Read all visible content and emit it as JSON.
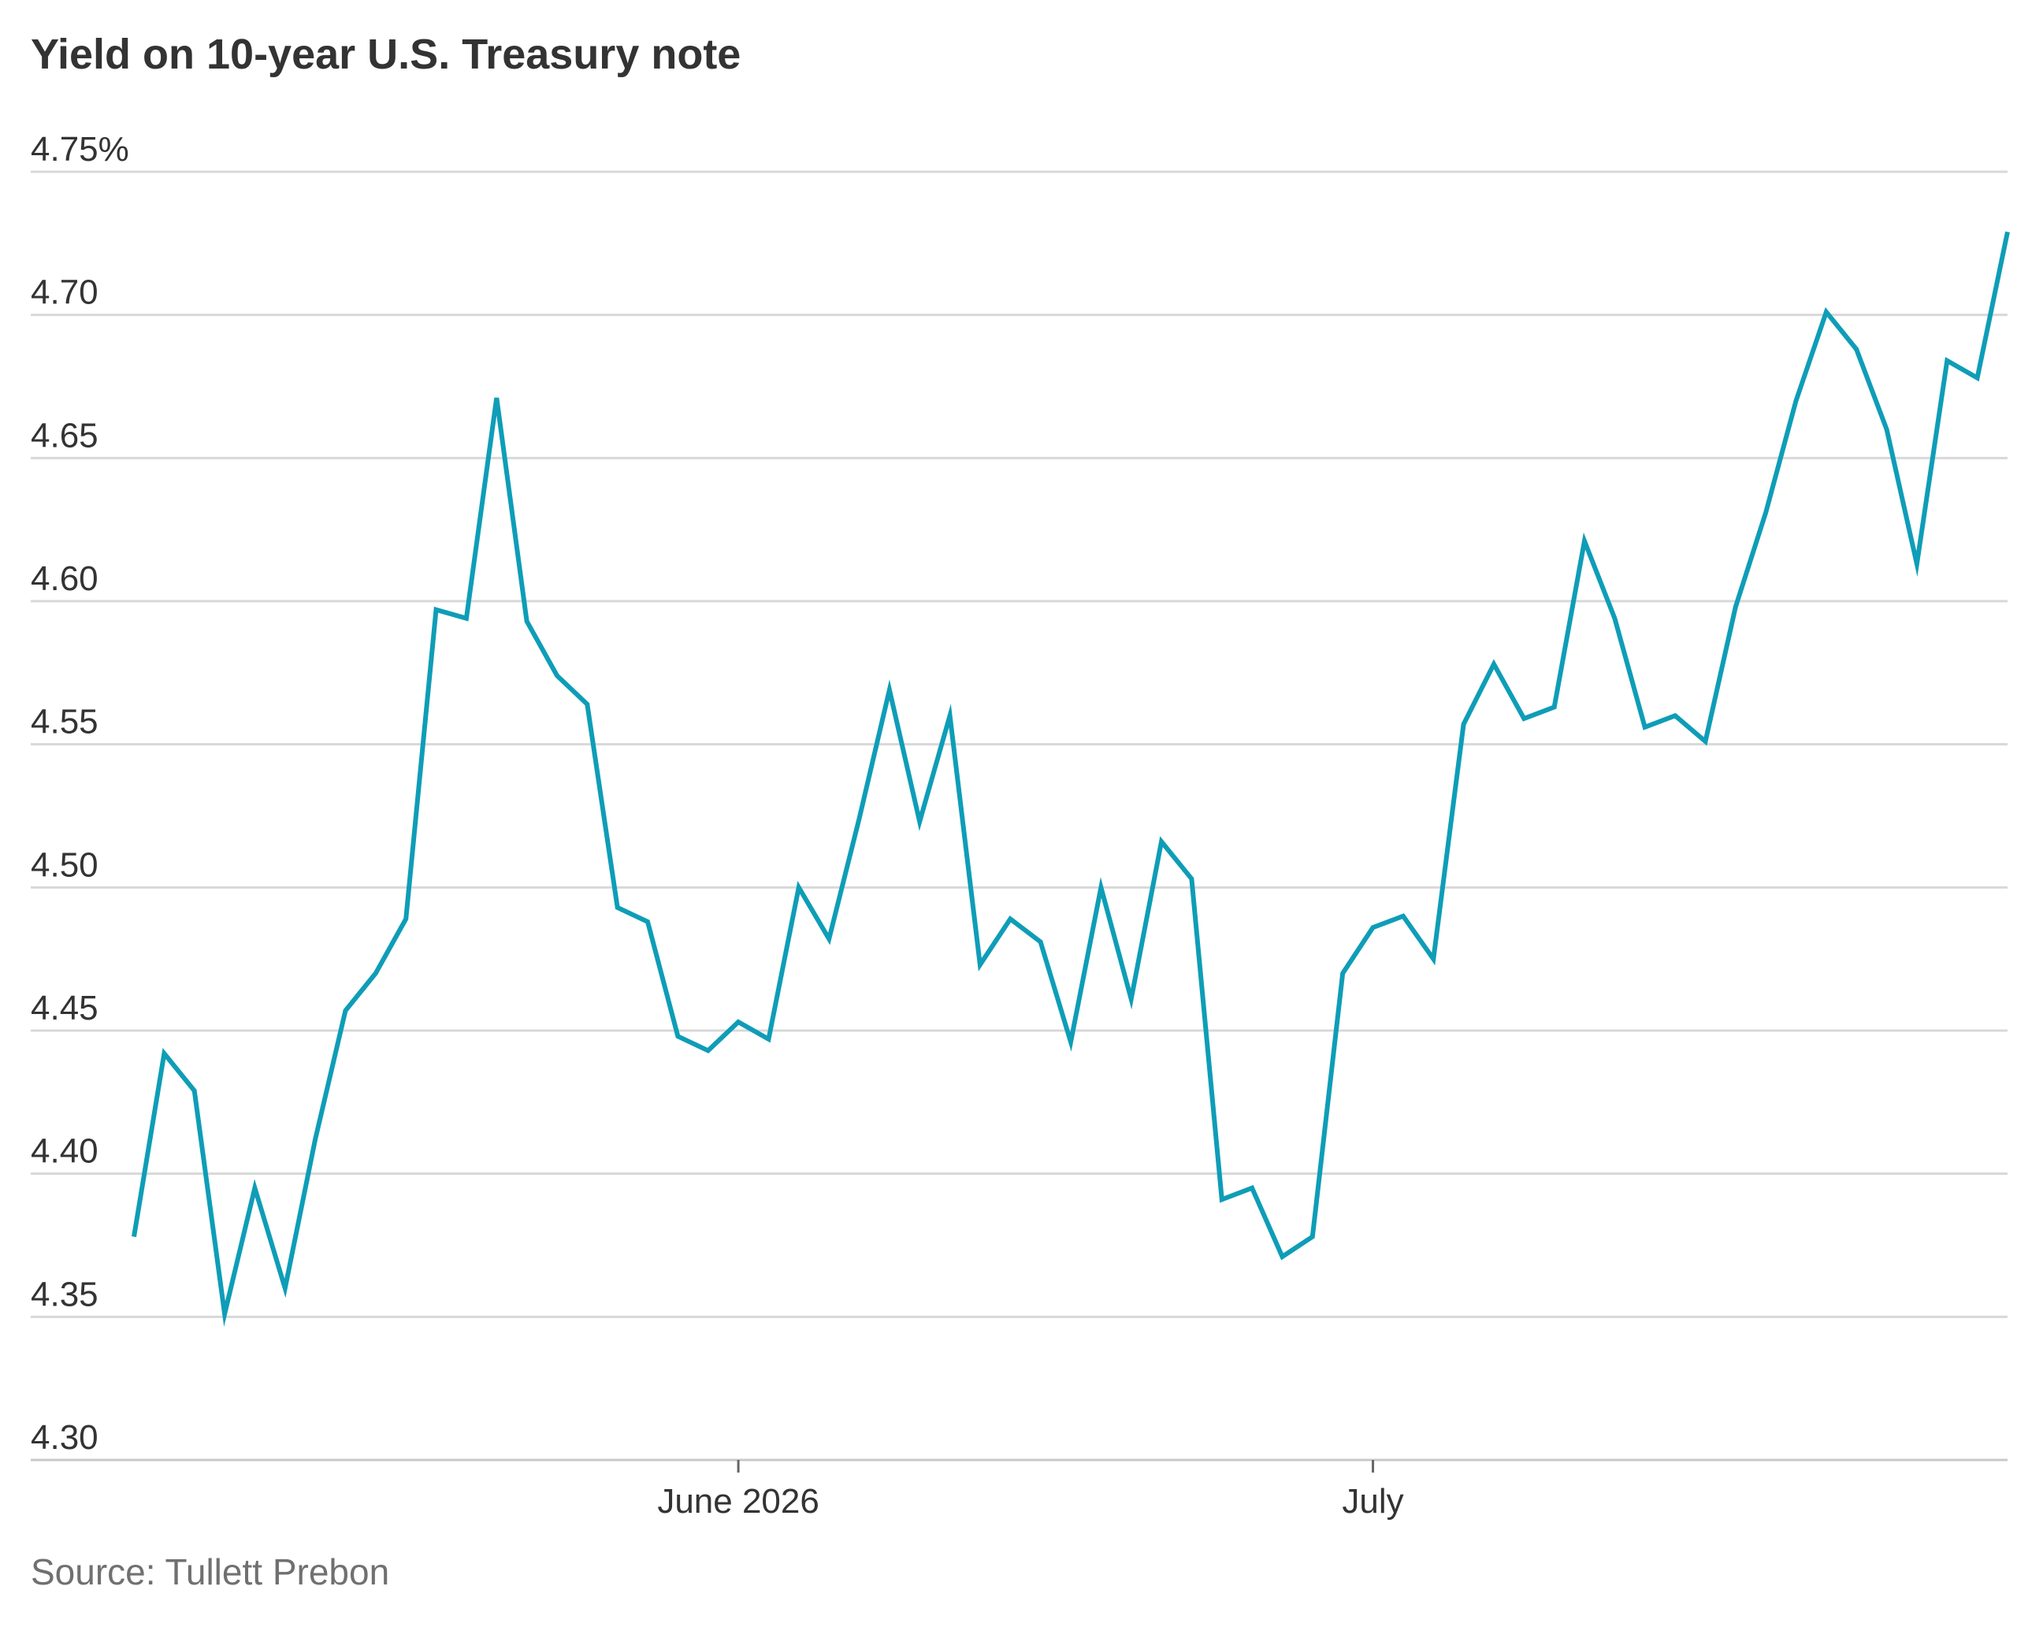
{
  "title": "Yield on 10-year U.S. Treasury note",
  "source": "Source: Tullett Prebon",
  "colors": {
    "line": "#0e9db7",
    "grid": "#d8d8d8",
    "axis_text": "#333333",
    "title": "#333333",
    "source": "#707070"
  },
  "chart_data": {
    "type": "line",
    "title": "Yield on 10-year U.S. Treasury note",
    "xlabel": "",
    "ylabel": "",
    "ylim": [
      4.3,
      4.75
    ],
    "y_ticks": [
      4.75,
      4.7,
      4.65,
      4.6,
      4.55,
      4.5,
      4.45,
      4.4,
      4.35,
      4.3
    ],
    "y_tick_labels": [
      "4.75%",
      "4.70",
      "4.65",
      "4.60",
      "4.55",
      "4.50",
      "4.45",
      "4.40",
      "4.35",
      "4.30"
    ],
    "x_ticks": [
      {
        "label": "June 2026",
        "index": 20
      },
      {
        "label": "July",
        "index": 41
      }
    ],
    "grid": true,
    "legend": "none",
    "series": [
      {
        "values": [
          4.378,
          4.442,
          4.429,
          4.351,
          4.395,
          4.36,
          4.412,
          4.457,
          4.47,
          4.489,
          4.597,
          4.594,
          4.671,
          4.593,
          4.574,
          4.564,
          4.493,
          4.488,
          4.448,
          4.443,
          4.453,
          4.447,
          4.5,
          4.482,
          4.524,
          4.569,
          4.523,
          4.56,
          4.473,
          4.489,
          4.481,
          4.446,
          4.5,
          4.461,
          4.516,
          4.503,
          4.391,
          4.395,
          4.371,
          4.378,
          4.47,
          4.486,
          4.49,
          4.475,
          4.557,
          4.578,
          4.559,
          4.563,
          4.621,
          4.594,
          4.556,
          4.56,
          4.551,
          4.598,
          4.631,
          4.67,
          4.701,
          4.688,
          4.66,
          4.613,
          4.684,
          4.678,
          4.729
        ]
      }
    ]
  }
}
